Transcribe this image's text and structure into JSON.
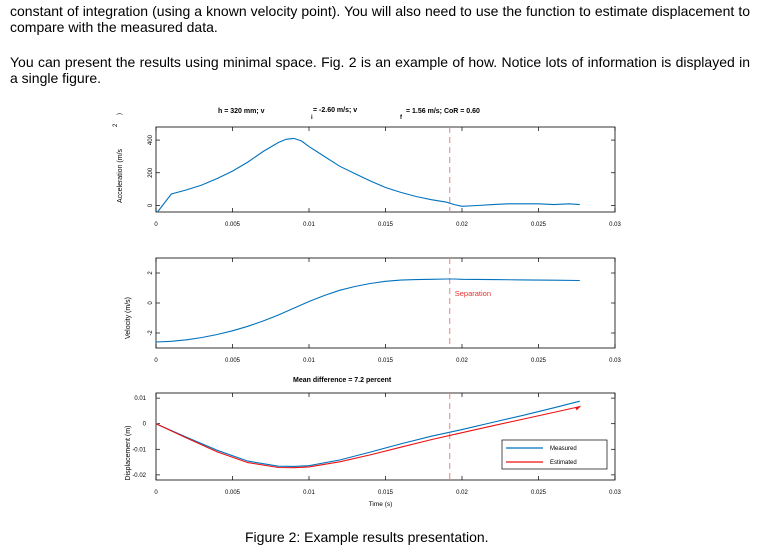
{
  "text": {
    "paragraph1": "constant of integration (using a known velocity point). You will also need to use the function to estimate displacement to compare with the measured data.",
    "paragraph2": "You can present the results using minimal space. Fig. 2 is an example of how. Notice lots of information is displayed in a single figure.",
    "caption": "Figure 2: Example results presentation."
  },
  "figure": {
    "header": {
      "h": "h = 320 mm; v",
      "vi": "= -2.60 m/s; v",
      "vi_sub": "i",
      "vf": "= 1.56 m/s; CoR = 0.60",
      "vf_sub": "f"
    },
    "top_unit_fragment": "2",
    "top_unit_paren": ")",
    "mean_difference": "Mean difference = 7.2 percent",
    "separation_label": "Separation",
    "xlabel": "Time (s)",
    "colors": {
      "measured": "#0072bd",
      "estimated": "#ee1111",
      "separation": "#f08080"
    }
  },
  "chart_data": [
    {
      "type": "line",
      "ylabel": "Acceleration (m/s",
      "xlim": [
        0,
        0.03
      ],
      "ylim": [
        -40,
        480
      ],
      "xticks": [
        "0",
        "0.005",
        "0.01",
        "0.015",
        "0.02",
        "0.025",
        "0.03"
      ],
      "yticks": [
        "0",
        "200",
        "400"
      ],
      "separation_x": 0.0192,
      "series": [
        {
          "x": [
            0.0001,
            0.001,
            0.002,
            0.003,
            0.004,
            0.005,
            0.006,
            0.007,
            0.008,
            0.0085,
            0.009,
            0.0095,
            0.01,
            0.011,
            0.012,
            0.013,
            0.014,
            0.015,
            0.016,
            0.017,
            0.018,
            0.019,
            0.0195,
            0.02,
            0.021,
            0.022,
            0.023,
            0.024,
            0.025,
            0.026,
            0.027,
            0.0277
          ],
          "y": [
            -40,
            70,
            95,
            125,
            165,
            210,
            265,
            330,
            385,
            405,
            410,
            395,
            360,
            300,
            240,
            195,
            150,
            110,
            80,
            55,
            35,
            20,
            5,
            -5,
            0,
            5,
            10,
            10,
            10,
            5,
            10,
            5
          ]
        }
      ]
    },
    {
      "type": "line",
      "ylabel": "Velocity (m/s)",
      "xlim": [
        0,
        0.03
      ],
      "ylim": [
        -3,
        3
      ],
      "xticks": [
        "0",
        "0.005",
        "0.01",
        "0.015",
        "0.02",
        "0.025",
        "0.03"
      ],
      "yticks": [
        "-2",
        "0",
        "2"
      ],
      "separation_x": 0.0192,
      "series": [
        {
          "x": [
            0,
            0.001,
            0.002,
            0.003,
            0.004,
            0.005,
            0.006,
            0.007,
            0.008,
            0.009,
            0.01,
            0.011,
            0.012,
            0.013,
            0.014,
            0.015,
            0.016,
            0.017,
            0.018,
            0.019,
            0.0195,
            0.02,
            0.022,
            0.024,
            0.026,
            0.0277
          ],
          "y": [
            -2.6,
            -2.55,
            -2.45,
            -2.3,
            -2.1,
            -1.85,
            -1.55,
            -1.2,
            -0.8,
            -0.35,
            0.1,
            0.5,
            0.85,
            1.1,
            1.3,
            1.45,
            1.53,
            1.56,
            1.58,
            1.6,
            1.6,
            1.58,
            1.56,
            1.54,
            1.52,
            1.5
          ]
        }
      ]
    },
    {
      "type": "line",
      "ylabel": "Displacement (m)",
      "xlabel": "Time (s)",
      "xlim": [
        0,
        0.03
      ],
      "ylim": [
        -0.022,
        0.012
      ],
      "xticks": [
        "0",
        "0.005",
        "0.01",
        "0.015",
        "0.02",
        "0.025",
        "0.03"
      ],
      "yticks": [
        "-0.02",
        "-0.01",
        "0",
        "0.01"
      ],
      "separation_x": 0.0192,
      "legend": "bottom-right",
      "series": [
        {
          "name": "Measured",
          "x": [
            0,
            0.002,
            0.004,
            0.006,
            0.008,
            0.009,
            0.01,
            0.012,
            0.014,
            0.016,
            0.018,
            0.02,
            0.022,
            0.024,
            0.026,
            0.0277
          ],
          "y": [
            0,
            -0.0053,
            -0.0104,
            -0.0146,
            -0.0166,
            -0.0167,
            -0.0164,
            -0.0142,
            -0.0111,
            -0.0079,
            -0.0049,
            -0.0023,
            0.0005,
            0.0033,
            0.0062,
            0.0088
          ]
        },
        {
          "name": "Estimated",
          "x": [
            0,
            0.002,
            0.004,
            0.006,
            0.008,
            0.009,
            0.01,
            0.012,
            0.014,
            0.016,
            0.018,
            0.02,
            0.022,
            0.024,
            0.026,
            0.0277
          ],
          "y": [
            0,
            -0.0056,
            -0.011,
            -0.0152,
            -0.0171,
            -0.0172,
            -0.0169,
            -0.0149,
            -0.0122,
            -0.0092,
            -0.0062,
            -0.0035,
            -0.0008,
            0.0018,
            0.0044,
            0.0067
          ]
        }
      ]
    }
  ]
}
